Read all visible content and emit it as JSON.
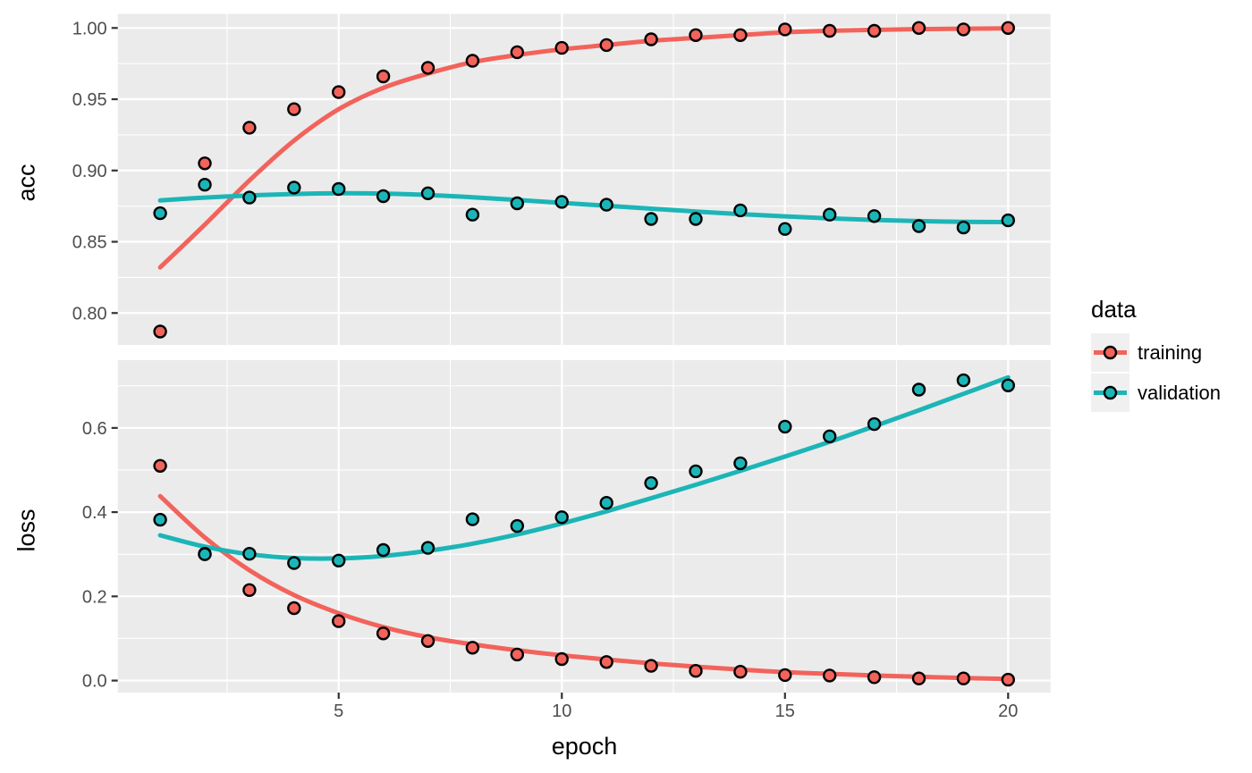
{
  "figure": {
    "background": "#FFFFFF",
    "panel_background": "#EBEBEB",
    "grid_color": "#FFFFFF",
    "tick_color": "#333333",
    "tick_label_color": "#4D4D4D",
    "axis_title_color": "#000000",
    "point_stroke_color": "#000000",
    "legend": {
      "title": "data",
      "key_background": "#F0F0F0",
      "items": [
        {
          "label": "training",
          "color": "#F2635B"
        },
        {
          "label": "validation",
          "color": "#1CB5B7"
        }
      ]
    }
  },
  "chart_data": {
    "type": "scatter",
    "subtype": "points-with-loess-smooth, two stacked facets sharing x axis",
    "xlabel": "epoch",
    "x": [
      1,
      2,
      3,
      4,
      5,
      6,
      7,
      8,
      9,
      10,
      11,
      12,
      13,
      14,
      15,
      16,
      17,
      18,
      19,
      20
    ],
    "xlim": [
      0.05,
      20.95
    ],
    "xticks": [
      5,
      10,
      15,
      20
    ],
    "xtick_labels": [
      "5",
      "10",
      "15",
      "20"
    ],
    "xticks_minor": [
      2.5,
      7.5,
      12.5,
      17.5
    ],
    "grid": true,
    "legend_position": "right",
    "panels": [
      {
        "ylabel": "acc",
        "ylim": [
          0.7776,
          1.0099
        ],
        "yticks": [
          1.0,
          0.95,
          0.9,
          0.85,
          0.8
        ],
        "ytick_labels": [
          "1.00",
          "0.95",
          "0.90",
          "0.85",
          "0.80"
        ],
        "yticks_minor": [
          0.975,
          0.925,
          0.875,
          0.825
        ],
        "series": [
          {
            "name": "training",
            "points": [
              0.787,
              0.905,
              0.93,
              0.943,
              0.955,
              0.966,
              0.972,
              0.977,
              0.983,
              0.986,
              0.988,
              0.992,
              0.995,
              0.995,
              0.999,
              0.998,
              0.998,
              1.0,
              0.999,
              1.0
            ],
            "smooth": [
              0.832,
              0.862,
              0.893,
              0.921,
              0.943,
              0.958,
              0.968,
              0.976,
              0.981,
              0.985,
              0.988,
              0.991,
              0.993,
              0.995,
              0.997,
              0.998,
              0.9987,
              0.9992,
              0.9995,
              0.9997
            ]
          },
          {
            "name": "validation",
            "points": [
              0.87,
              0.89,
              0.881,
              0.888,
              0.887,
              0.882,
              0.884,
              0.869,
              0.877,
              0.878,
              0.876,
              0.866,
              0.866,
              0.872,
              0.859,
              0.869,
              0.868,
              0.861,
              0.86,
              0.865
            ],
            "smooth": [
              0.879,
              0.881,
              0.8825,
              0.8835,
              0.884,
              0.8838,
              0.8828,
              0.8812,
              0.8793,
              0.8773,
              0.8752,
              0.8732,
              0.8712,
              0.8694,
              0.8678,
              0.8664,
              0.8653,
              0.8645,
              0.864,
              0.8638
            ]
          }
        ]
      },
      {
        "ylabel": "loss",
        "ylim": [
          -0.0285,
          0.761
        ],
        "yticks": [
          0.6,
          0.4,
          0.2,
          0.0
        ],
        "ytick_labels": [
          "0.6",
          "0.4",
          "0.2",
          "0.0"
        ],
        "yticks_minor": [
          0.7,
          0.5,
          0.3,
          0.1
        ],
        "series": [
          {
            "name": "training",
            "points": [
              0.51,
              0.301,
              0.215,
              0.172,
              0.141,
              0.112,
              0.094,
              0.078,
              0.062,
              0.051,
              0.044,
              0.035,
              0.023,
              0.021,
              0.013,
              0.012,
              0.008,
              0.005,
              0.005,
              0.002
            ],
            "smooth": [
              0.438,
              0.34,
              0.262,
              0.203,
              0.16,
              0.127,
              0.103,
              0.086,
              0.072,
              0.06,
              0.05,
              0.041,
              0.033,
              0.026,
              0.02,
              0.016,
              0.012,
              0.009,
              0.006,
              0.004
            ]
          },
          {
            "name": "validation",
            "points": [
              0.382,
              0.3,
              0.301,
              0.279,
              0.285,
              0.31,
              0.315,
              0.383,
              0.367,
              0.388,
              0.422,
              0.469,
              0.497,
              0.516,
              0.603,
              0.58,
              0.609,
              0.691,
              0.713,
              0.701
            ],
            "smooth": [
              0.345,
              0.318,
              0.3,
              0.291,
              0.29,
              0.296,
              0.308,
              0.325,
              0.347,
              0.373,
              0.402,
              0.433,
              0.465,
              0.498,
              0.532,
              0.567,
              0.604,
              0.642,
              0.681,
              0.72
            ]
          }
        ]
      }
    ]
  }
}
